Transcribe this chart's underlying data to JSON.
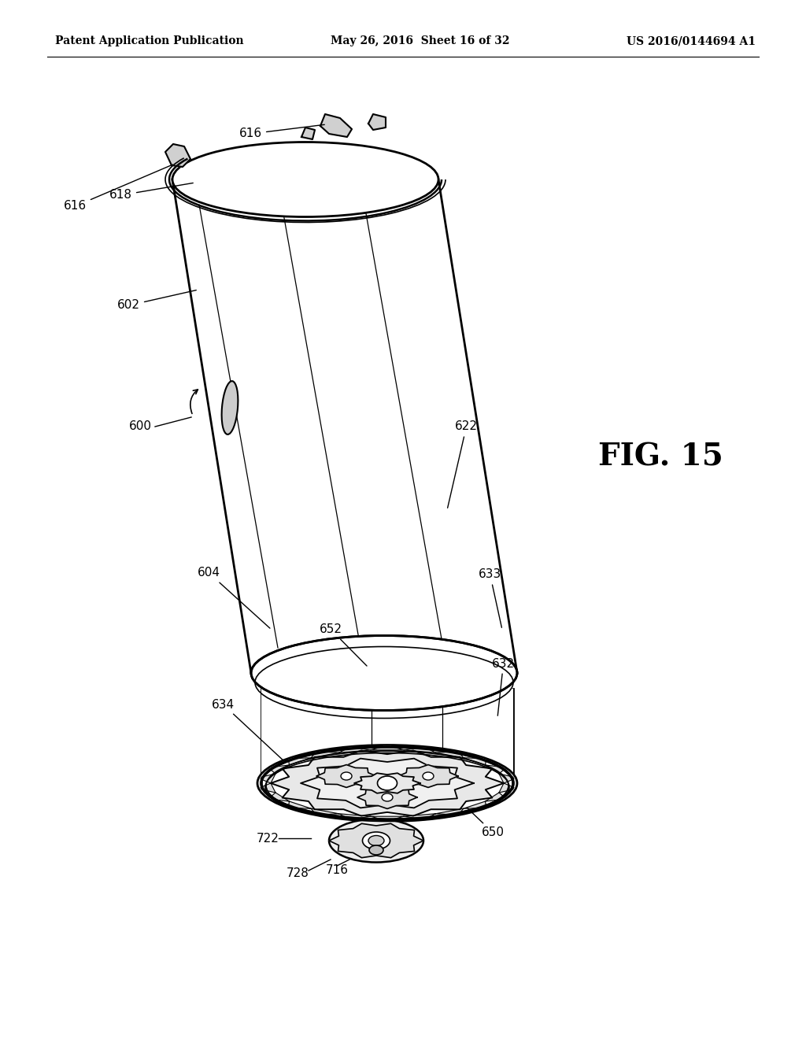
{
  "header_left": "Patent Application Publication",
  "header_mid": "May 26, 2016  Sheet 16 of 32",
  "header_right": "US 2016/0144694 A1",
  "fig_label": "FIG. 15",
  "bg_color": "#ffffff",
  "line_color": "#000000",
  "header_fontsize": 10,
  "fig_fontsize": 28,
  "label_fontsize": 11
}
